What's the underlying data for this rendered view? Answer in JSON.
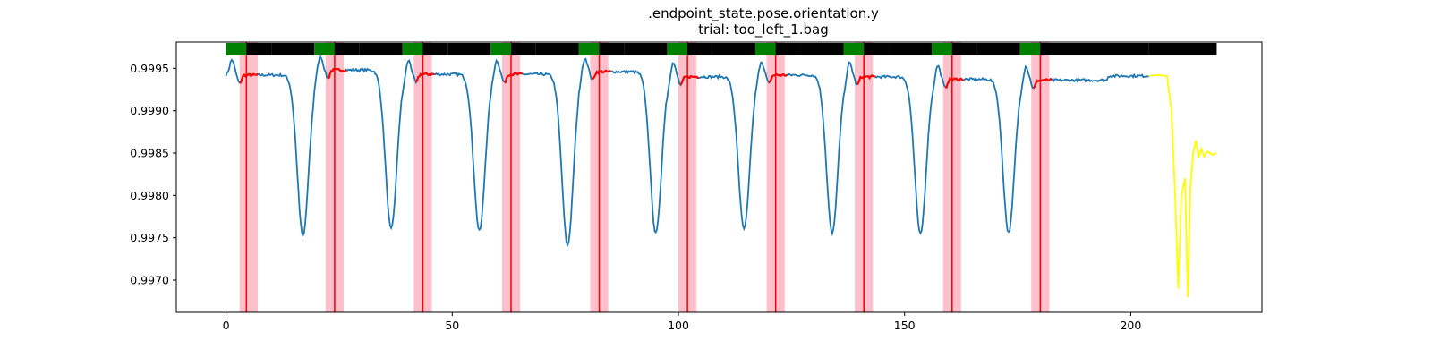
{
  "chart_data": {
    "type": "line",
    "title": ".endpoint_state.pose.orientation.y",
    "subtitle": "trial: too_left_1.bag",
    "xlabel": "",
    "ylabel": "",
    "xlim": [
      -11,
      229
    ],
    "ylim": [
      0.99662,
      0.99981
    ],
    "xticks": [
      0,
      50,
      100,
      150,
      200
    ],
    "xtick_labels": [
      "0",
      "50",
      "100",
      "150",
      "200"
    ],
    "yticks": [
      0.997,
      0.9975,
      0.998,
      0.9985,
      0.999,
      0.9995
    ],
    "ytick_labels": [
      "0.9970",
      "0.9975",
      "0.9980",
      "0.9985",
      "0.9990",
      "0.9995"
    ],
    "grid": false,
    "legend": "none",
    "colors": {
      "signal": "#1f77b4",
      "marked": "#ff0000",
      "tail": "#ffff00",
      "band": "#ffc0cb",
      "green": "#008000",
      "black": "#000000"
    },
    "baseline_levels": [
      0.99942,
      0.99948,
      0.99943,
      0.99943,
      0.99946,
      0.9994,
      0.99942,
      0.9994,
      0.99937,
      0.99936,
      0.99941
    ],
    "dips": [
      {
        "x": 17.0,
        "y": 0.99752
      },
      {
        "x": 36.5,
        "y": 0.9976
      },
      {
        "x": 56.0,
        "y": 0.99758
      },
      {
        "x": 75.5,
        "y": 0.99741
      },
      {
        "x": 95.0,
        "y": 0.99755
      },
      {
        "x": 114.5,
        "y": 0.9976
      },
      {
        "x": 134.0,
        "y": 0.99755
      },
      {
        "x": 153.5,
        "y": 0.99754
      },
      {
        "x": 173.0,
        "y": 0.99756
      }
    ],
    "event_lines": [
      4.5,
      24.0,
      43.5,
      63.0,
      82.5,
      102.0,
      121.5,
      141.0,
      160.5,
      180.0
    ],
    "bands": [
      [
        3,
        7
      ],
      [
        22,
        26
      ],
      [
        41.5,
        45.5
      ],
      [
        61,
        65
      ],
      [
        80.5,
        84.5
      ],
      [
        100,
        104
      ],
      [
        119.5,
        123.5
      ],
      [
        139,
        143
      ],
      [
        158.5,
        162.5
      ],
      [
        178,
        182
      ]
    ],
    "phase_segments": [
      {
        "start": 0,
        "end": 4.5,
        "phase": "green"
      },
      {
        "start": 4.5,
        "end": 10,
        "phase": "red"
      },
      {
        "start": 10,
        "end": 19.5,
        "phase": "black"
      },
      {
        "start": 19.5,
        "end": 24,
        "phase": "green"
      },
      {
        "start": 24,
        "end": 29.5,
        "phase": "red"
      },
      {
        "start": 29.5,
        "end": 39,
        "phase": "black"
      },
      {
        "start": 39,
        "end": 43.5,
        "phase": "green"
      },
      {
        "start": 43.5,
        "end": 49,
        "phase": "red"
      },
      {
        "start": 49,
        "end": 58.5,
        "phase": "black"
      },
      {
        "start": 58.5,
        "end": 63,
        "phase": "green"
      },
      {
        "start": 63,
        "end": 68.5,
        "phase": "red"
      },
      {
        "start": 68.5,
        "end": 78,
        "phase": "black"
      },
      {
        "start": 78,
        "end": 82.5,
        "phase": "green"
      },
      {
        "start": 82.5,
        "end": 88,
        "phase": "red"
      },
      {
        "start": 88,
        "end": 97.5,
        "phase": "black"
      },
      {
        "start": 97.5,
        "end": 102,
        "phase": "green"
      },
      {
        "start": 102,
        "end": 107.5,
        "phase": "red"
      },
      {
        "start": 107.5,
        "end": 117,
        "phase": "black"
      },
      {
        "start": 117,
        "end": 121.5,
        "phase": "green"
      },
      {
        "start": 121.5,
        "end": 127,
        "phase": "red"
      },
      {
        "start": 127,
        "end": 136.5,
        "phase": "black"
      },
      {
        "start": 136.5,
        "end": 141,
        "phase": "green"
      },
      {
        "start": 141,
        "end": 146.5,
        "phase": "red"
      },
      {
        "start": 146.5,
        "end": 156,
        "phase": "black"
      },
      {
        "start": 156,
        "end": 160.5,
        "phase": "green"
      },
      {
        "start": 160.5,
        "end": 166,
        "phase": "red"
      },
      {
        "start": 166,
        "end": 175.5,
        "phase": "black"
      },
      {
        "start": 175.5,
        "end": 180,
        "phase": "green"
      },
      {
        "start": 180,
        "end": 204,
        "phase": "red"
      },
      {
        "start": 204,
        "end": 219,
        "phase": "yellow"
      }
    ],
    "tail": {
      "x": [
        204,
        206,
        208,
        209,
        209.8,
        210.5,
        211.2,
        212,
        212.6,
        213.2,
        213.8,
        214.4,
        215,
        215.6,
        216.2,
        217,
        218,
        219
      ],
      "y": [
        0.99941,
        0.99942,
        0.99941,
        0.999,
        0.998,
        0.9969,
        0.998,
        0.9982,
        0.9968,
        0.9981,
        0.9985,
        0.99865,
        0.99845,
        0.99855,
        0.99846,
        0.99852,
        0.99848,
        0.9985
      ]
    }
  }
}
